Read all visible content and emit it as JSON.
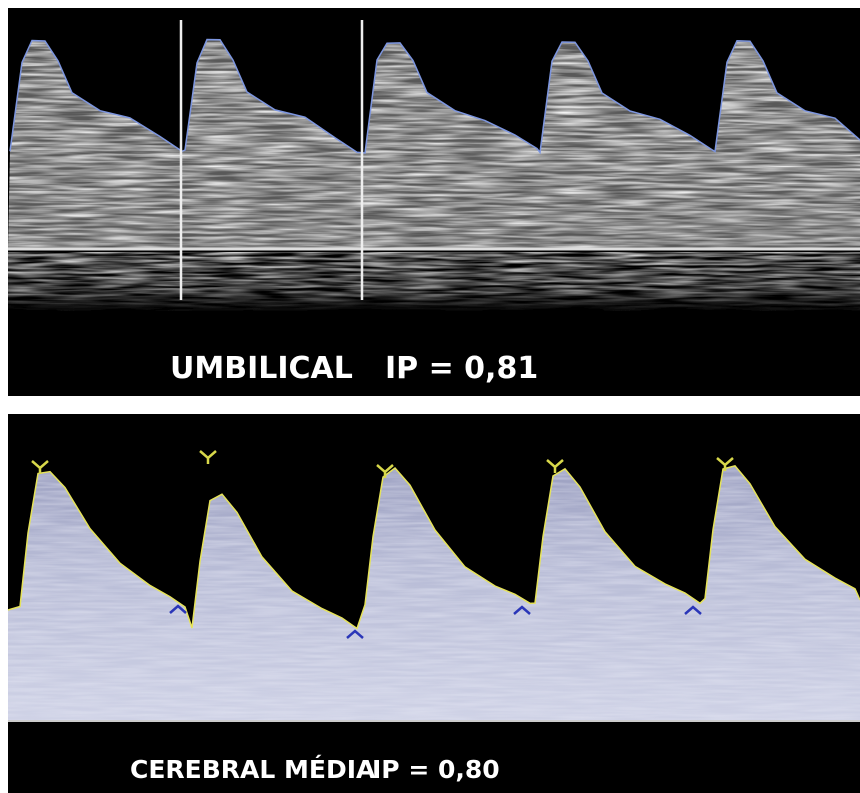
{
  "panels": [
    {
      "vessel": "UMBILICAL",
      "index": "IP = 0,81"
    },
    {
      "vessel": "CEREBRAL MÉDIA",
      "index": "IP = 0,80"
    }
  ]
}
